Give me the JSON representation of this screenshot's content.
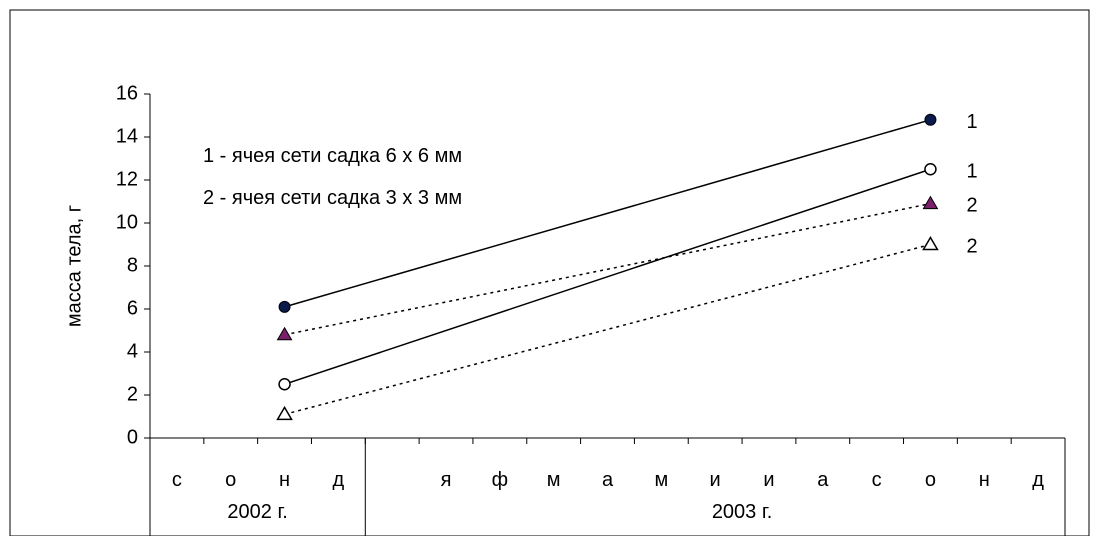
{
  "chart_data": {
    "type": "line",
    "ylabel": "масса тела, г",
    "ylim": [
      0,
      16
    ],
    "yticks": [
      0,
      2,
      4,
      6,
      8,
      10,
      12,
      14,
      16
    ],
    "categories": [
      "с",
      "о",
      "н",
      "д",
      "",
      "я",
      "ф",
      "м",
      "а",
      "м",
      "и",
      "и",
      "а",
      "с",
      "о",
      "н",
      "д"
    ],
    "year_labels": [
      {
        "text": "2002 г.",
        "category_center": 1.5
      },
      {
        "text": "2003 г.",
        "category_center": 10.5
      }
    ],
    "legend": [
      "1 - ячея сети садка 6 х 6 мм",
      "2 - ячея сети садка 3 х 3 мм"
    ],
    "series": [
      {
        "label": "1",
        "marker": "filled-circle",
        "line": "solid",
        "marker_color": "#0a1a4a",
        "points": [
          {
            "category": 2,
            "value": 6.1
          },
          {
            "category": 14,
            "value": 14.8
          }
        ]
      },
      {
        "label": "1",
        "marker": "open-circle",
        "line": "solid",
        "marker_color": "#000000",
        "points": [
          {
            "category": 2,
            "value": 2.5
          },
          {
            "category": 14,
            "value": 12.5
          }
        ]
      },
      {
        "label": "2",
        "marker": "filled-triangle",
        "line": "dotted",
        "marker_color": "#7a1f6a",
        "points": [
          {
            "category": 2,
            "value": 4.8
          },
          {
            "category": 14,
            "value": 10.9
          }
        ]
      },
      {
        "label": "2",
        "marker": "open-triangle",
        "line": "dotted",
        "marker_color": "#000000",
        "points": [
          {
            "category": 2,
            "value": 1.1
          },
          {
            "category": 14,
            "value": 9.0
          }
        ]
      }
    ],
    "grid": false
  }
}
